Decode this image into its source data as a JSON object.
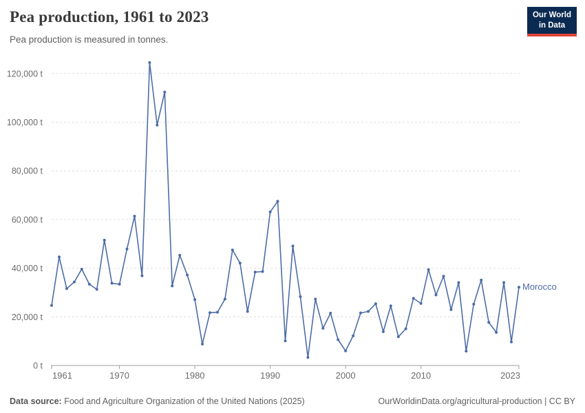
{
  "header": {
    "title": "Pea production, 1961 to 2023",
    "subtitle": "Pea production is measured in tonnes.",
    "logo_line1": "Our World",
    "logo_line2": "in Data"
  },
  "footer": {
    "source_label": "Data source:",
    "source_text": " Food and Agriculture Organization of the United Nations (2025)",
    "link_text": "OurWorldinData.org/agricultural-production | CC BY"
  },
  "colors": {
    "line": "#4c6ca6",
    "logo_bg": "#0b2a51",
    "logo_accent": "#e04437",
    "grid": "#dedede",
    "axis": "#9e9e9e",
    "tick_text": "#6b6b6b",
    "title_text": "#3a3a3a"
  },
  "chart_data": {
    "type": "line",
    "title": "Pea production, 1961 to 2023",
    "unit": "tonnes",
    "grid": "horizontal-dashed",
    "legend_position": "end-of-line",
    "ylim": [
      0,
      127000
    ],
    "x": [
      1961,
      1962,
      1963,
      1964,
      1965,
      1966,
      1967,
      1968,
      1969,
      1970,
      1971,
      1972,
      1973,
      1974,
      1975,
      1976,
      1977,
      1978,
      1979,
      1980,
      1981,
      1982,
      1983,
      1984,
      1985,
      1986,
      1987,
      1988,
      1989,
      1990,
      1991,
      1992,
      1993,
      1994,
      1995,
      1996,
      1997,
      1998,
      1999,
      2000,
      2001,
      2002,
      2003,
      2004,
      2005,
      2006,
      2007,
      2008,
      2009,
      2010,
      2011,
      2012,
      2013,
      2014,
      2015,
      2016,
      2017,
      2018,
      2019,
      2020,
      2021,
      2022,
      2023
    ],
    "series": [
      {
        "name": "Morocco",
        "values": [
          24700,
          44600,
          31600,
          34300,
          39600,
          33400,
          31300,
          51500,
          33800,
          33400,
          47900,
          61400,
          36900,
          124500,
          98800,
          112400,
          32700,
          45300,
          37200,
          27100,
          8800,
          21700,
          21900,
          27300,
          47500,
          42100,
          22200,
          38400,
          38600,
          63100,
          67500,
          10100,
          49100,
          28300,
          3300,
          27300,
          15300,
          21500,
          10600,
          6000,
          12200,
          21600,
          22200,
          25400,
          13900,
          24500,
          11800,
          15100,
          27600,
          25500,
          39400,
          29000,
          36700,
          23000,
          34100,
          5900,
          25200,
          35100,
          17700,
          13600,
          34100,
          9700,
          32200
        ]
      }
    ],
    "x_ticks": [
      "1961",
      "1970",
      "1980",
      "1990",
      "2000",
      "2010",
      "2023"
    ],
    "y_ticks": [
      0,
      20000,
      40000,
      60000,
      80000,
      100000,
      120000
    ],
    "y_tick_labels": [
      "0 t",
      "20,000 t",
      "40,000 t",
      "60,000 t",
      "80,000 t",
      "100,000 t",
      "120,000 t"
    ]
  }
}
